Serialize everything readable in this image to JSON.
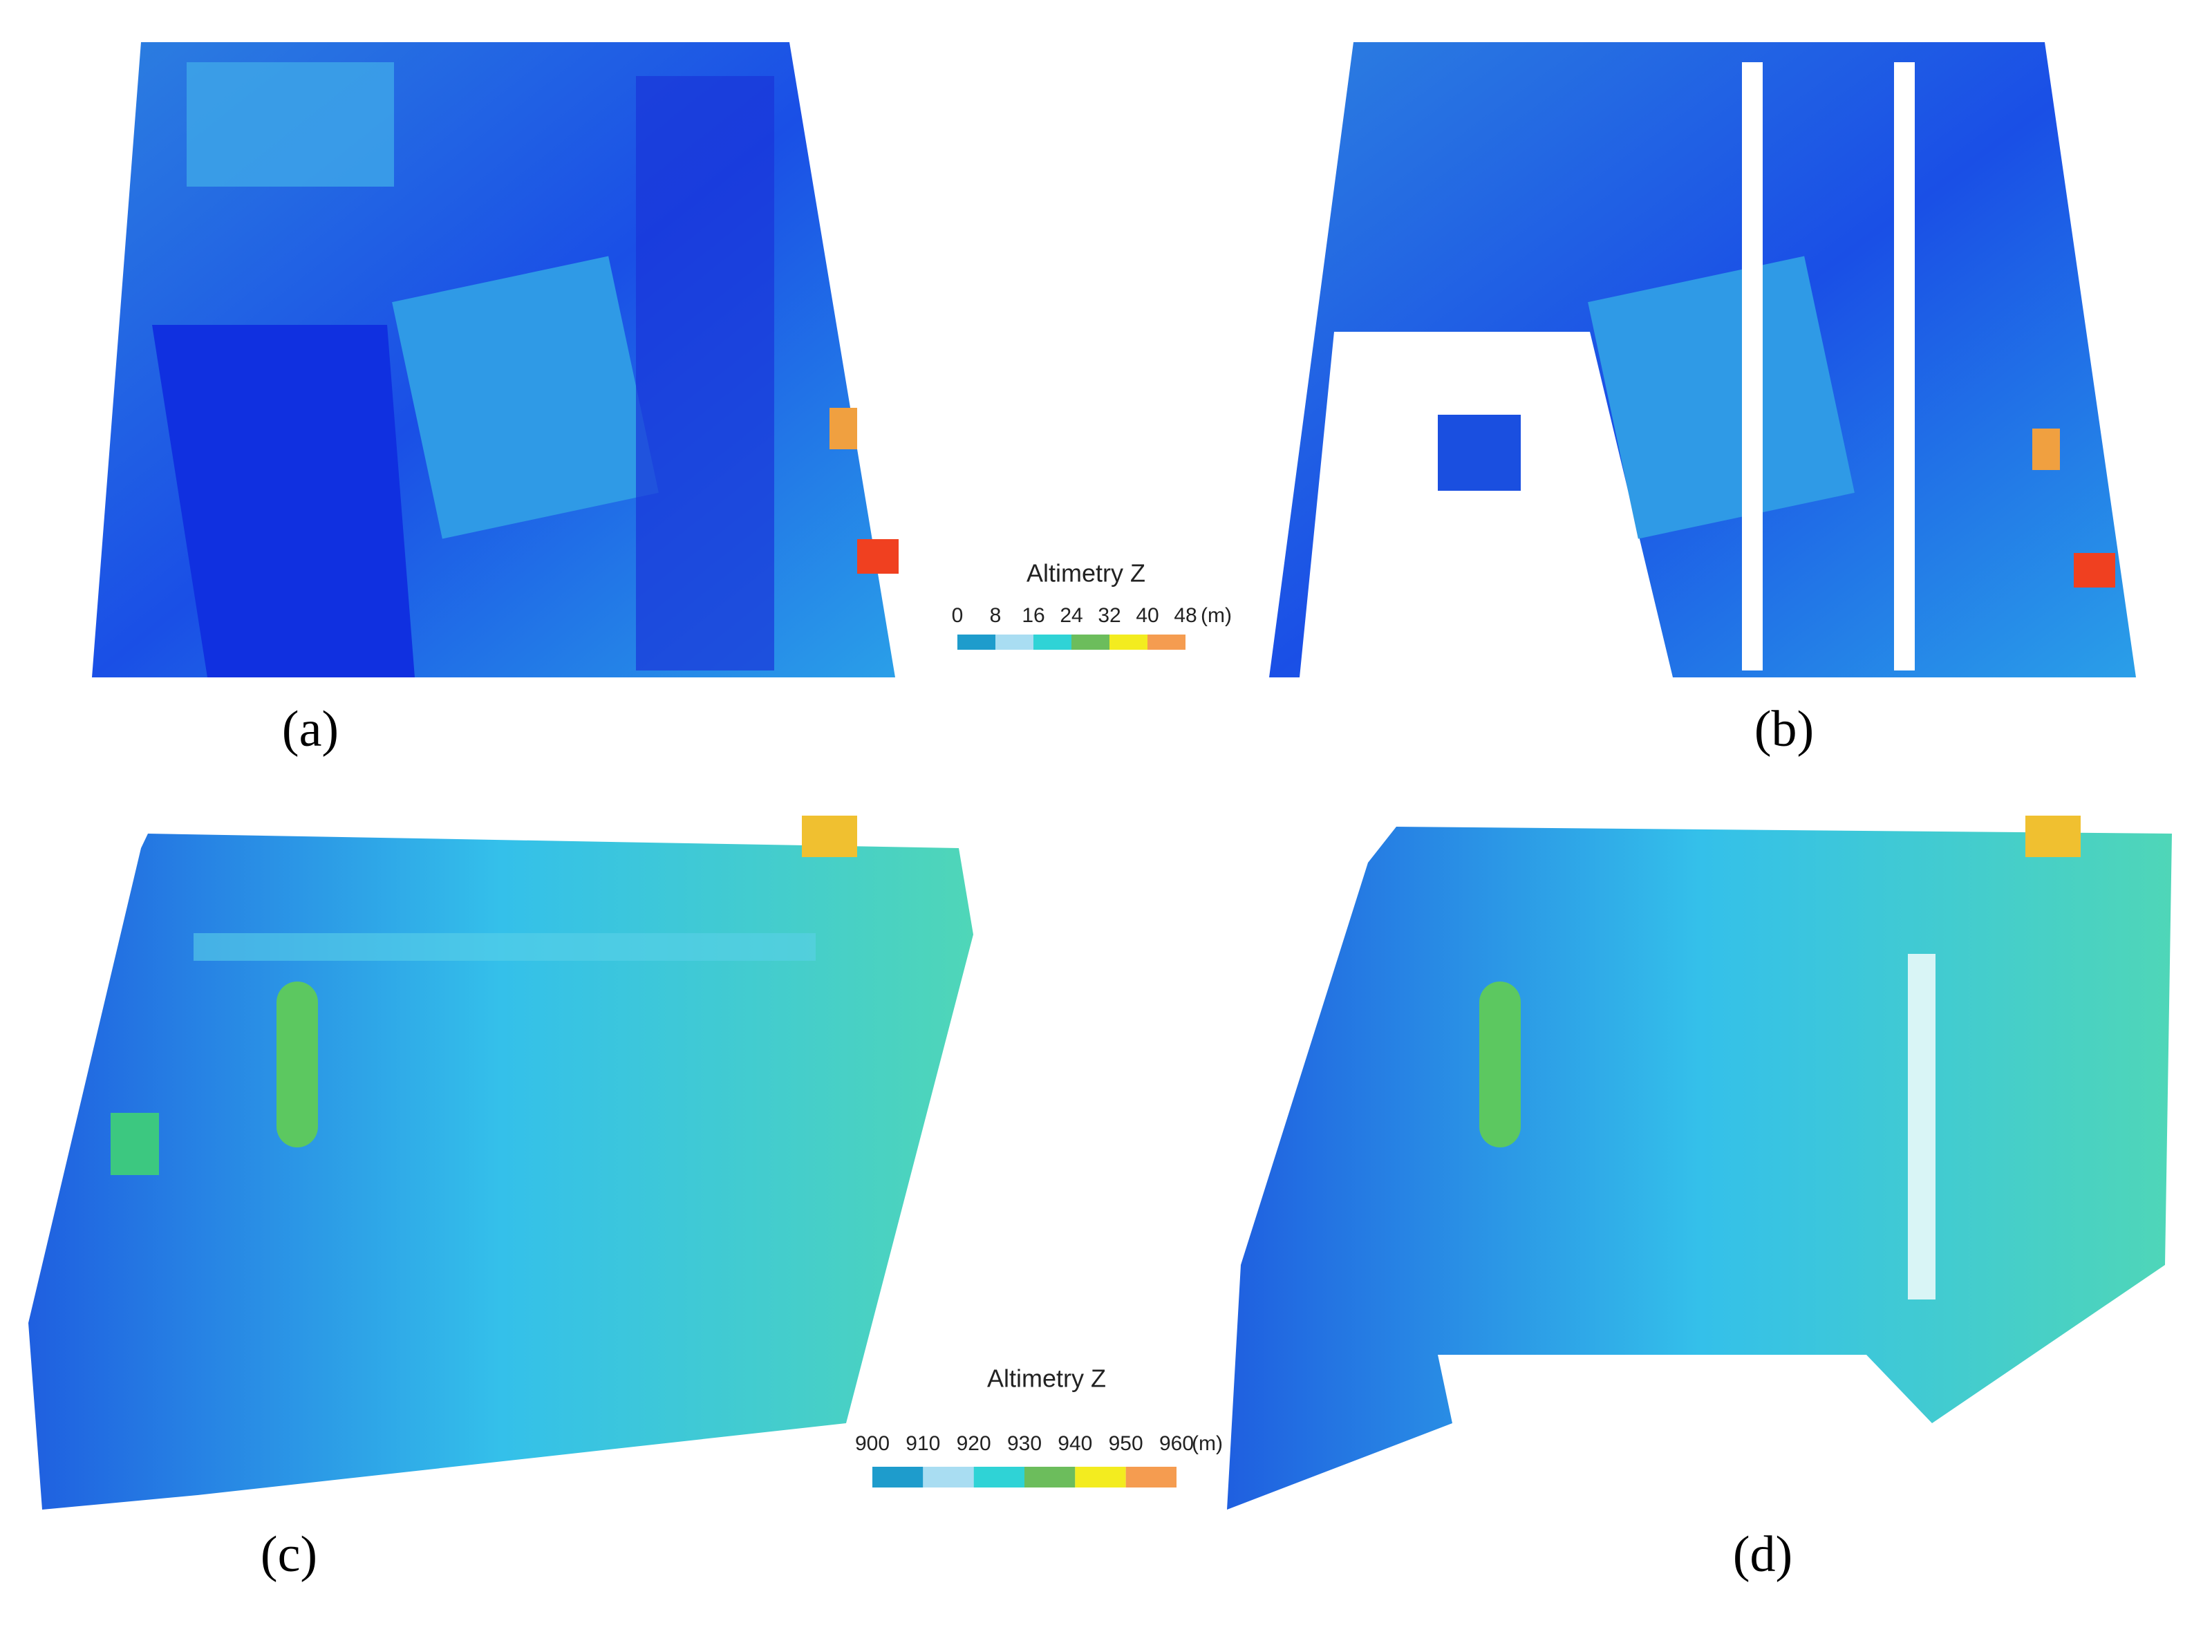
{
  "panels": [
    {
      "label": "(a)"
    },
    {
      "label": "(b)"
    },
    {
      "label": "(c)"
    },
    {
      "label": "(d)"
    }
  ],
  "legends": [
    {
      "title": "Altimetry Z",
      "ticks": [
        0,
        8,
        16,
        24,
        32,
        40,
        48
      ],
      "unit": "(m)",
      "colors": [
        "#1e9ccc",
        "#a9ddf2",
        "#2fd3d6",
        "#6cbd5c",
        "#f3ec1f",
        "#f59c50"
      ]
    },
    {
      "title": "Altimetry Z",
      "ticks": [
        900,
        910,
        920,
        930,
        940,
        950,
        960
      ],
      "unit": "(m)",
      "colors": [
        "#1e9ccc",
        "#a9ddf2",
        "#2fd3d6",
        "#6cbd5c",
        "#f3ec1f",
        "#f59c50"
      ]
    }
  ]
}
